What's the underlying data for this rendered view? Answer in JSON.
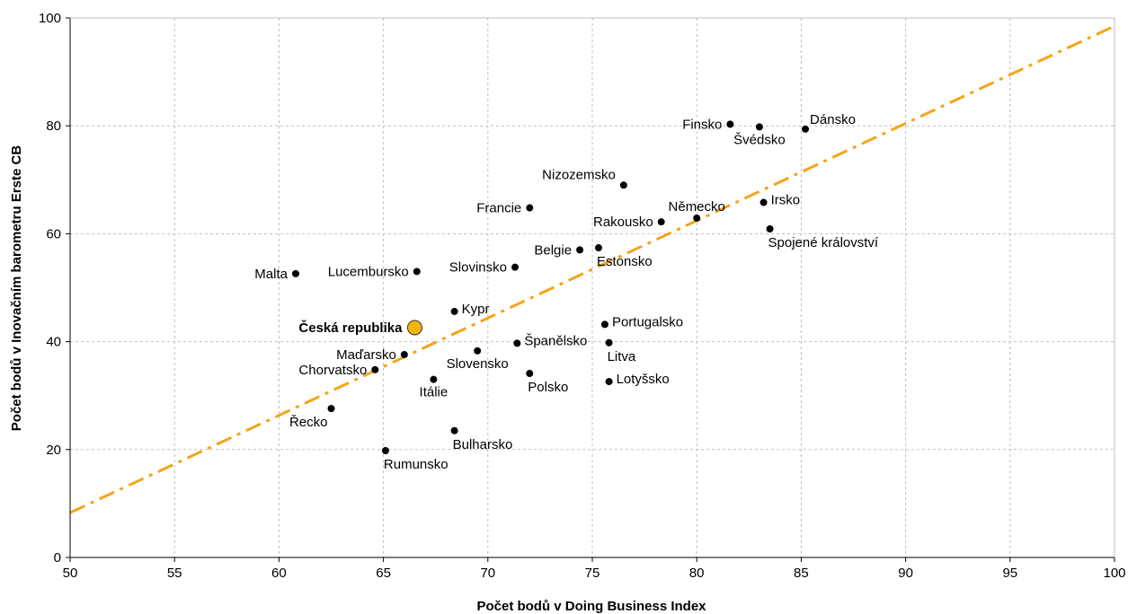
{
  "chart_data": {
    "type": "scatter",
    "title": "",
    "xlabel": "Počet bodů v Doing Business Index",
    "ylabel": "Počet bodů v Inovačním barometru Erste CB",
    "xlim": [
      50,
      100
    ],
    "ylim": [
      0,
      100
    ],
    "x_ticks": [
      "50",
      "55",
      "60",
      "65",
      "70",
      "75",
      "80",
      "85",
      "90",
      "95",
      "100"
    ],
    "y_ticks": [
      "0",
      "20",
      "40",
      "60",
      "80",
      "100"
    ],
    "grid": true,
    "legend": "none",
    "colors": {
      "point": "#000000",
      "highlight": "#F5B40A",
      "trend": "#F5A31A",
      "grid": "#BFBFBF"
    },
    "trendline": {
      "style": "dash-dot",
      "from": [
        50,
        8.3
      ],
      "to": [
        100,
        98.5
      ]
    },
    "points": [
      {
        "name": "Malta",
        "x": 60.8,
        "y": 52.6,
        "label_pos": "left"
      },
      {
        "name": "Lucembursko",
        "x": 66.6,
        "y": 53.0,
        "label_pos": "left"
      },
      {
        "name": "Slovinsko",
        "x": 71.3,
        "y": 53.8,
        "label_pos": "left"
      },
      {
        "name": "Česká republika",
        "x": 66.5,
        "y": 42.6,
        "label_pos": "left",
        "highlight": true
      },
      {
        "name": "Kypr",
        "x": 68.4,
        "y": 45.6,
        "label_pos": "right"
      },
      {
        "name": "Maďarsko",
        "x": 66.0,
        "y": 37.6,
        "label_pos": "left"
      },
      {
        "name": "Chorvatsko",
        "x": 64.6,
        "y": 34.8,
        "label_pos": "left"
      },
      {
        "name": "Slovensko",
        "x": 69.5,
        "y": 38.3,
        "label_pos": "below"
      },
      {
        "name": "Itálie",
        "x": 67.4,
        "y": 33.0,
        "label_pos": "below"
      },
      {
        "name": "Řecko",
        "x": 62.5,
        "y": 27.6,
        "label_pos": "below-left"
      },
      {
        "name": "Rumunsko",
        "x": 65.1,
        "y": 19.8,
        "label_pos": "below-right"
      },
      {
        "name": "Bulharsko",
        "x": 68.4,
        "y": 23.5,
        "label_pos": "below-right"
      },
      {
        "name": "Španělsko",
        "x": 71.4,
        "y": 39.7,
        "label_pos": "right"
      },
      {
        "name": "Polsko",
        "x": 72.0,
        "y": 34.1,
        "label_pos": "below-right"
      },
      {
        "name": "Francie",
        "x": 72.0,
        "y": 64.8,
        "label_pos": "left"
      },
      {
        "name": "Belgie",
        "x": 74.4,
        "y": 57.0,
        "label_pos": "left"
      },
      {
        "name": "Estonsko",
        "x": 75.3,
        "y": 57.4,
        "label_pos": "below-right"
      },
      {
        "name": "Nizozemsko",
        "x": 76.5,
        "y": 69.0,
        "label_pos": "above-left"
      },
      {
        "name": "Portugalsko",
        "x": 75.6,
        "y": 43.2,
        "label_pos": "right"
      },
      {
        "name": "Litva",
        "x": 75.8,
        "y": 39.8,
        "label_pos": "below-right"
      },
      {
        "name": "Lotyšsko",
        "x": 75.8,
        "y": 32.6,
        "label_pos": "right"
      },
      {
        "name": "Rakousko",
        "x": 78.3,
        "y": 62.2,
        "label_pos": "left"
      },
      {
        "name": "Německo",
        "x": 80.0,
        "y": 62.9,
        "label_pos": "above"
      },
      {
        "name": "Finsko",
        "x": 81.6,
        "y": 80.3,
        "label_pos": "left"
      },
      {
        "name": "Švédsko",
        "x": 83.0,
        "y": 79.8,
        "label_pos": "below"
      },
      {
        "name": "Dánsko",
        "x": 85.2,
        "y": 79.4,
        "label_pos": "above-right"
      },
      {
        "name": "Irsko",
        "x": 83.2,
        "y": 65.8,
        "label_pos": "right"
      },
      {
        "name": "Spojené království",
        "x": 83.5,
        "y": 60.9,
        "label_pos": "below-right"
      }
    ]
  }
}
